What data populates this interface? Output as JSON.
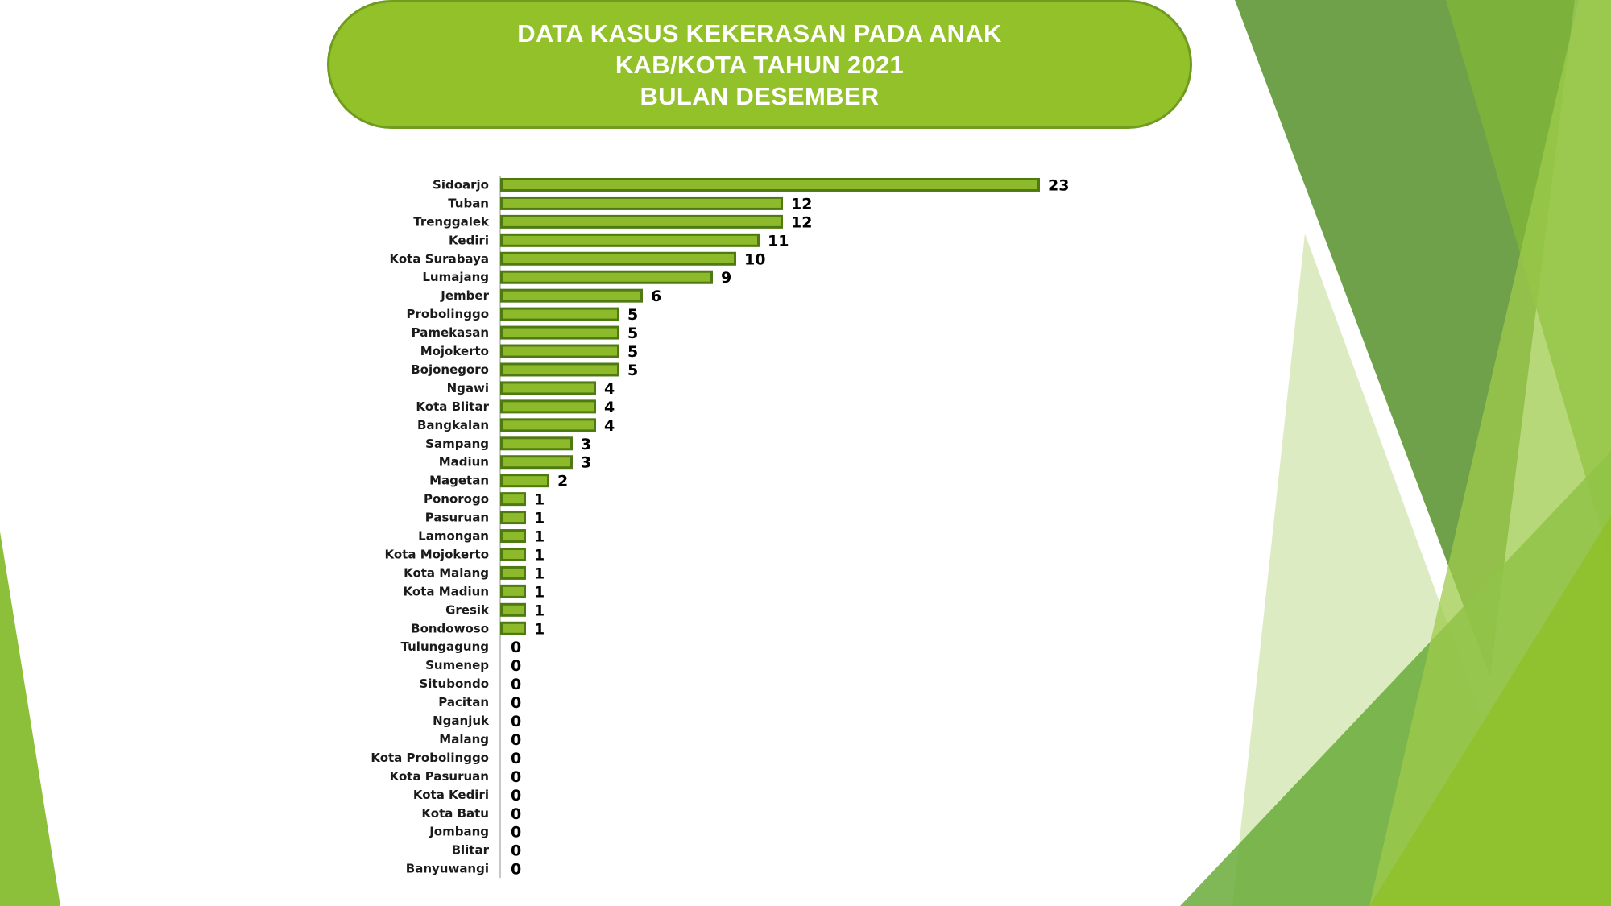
{
  "title": {
    "line1": "DATA KASUS KEKERASAN PADA ANAK",
    "line2": "KAB/KOTA TAHUN 2021",
    "line3": "BULAN DESEMBER"
  },
  "colors": {
    "title_fill": "#92c12a",
    "bar_fill": "#8dba2b",
    "bar_stroke": "#4f7a12"
  },
  "chart_data": {
    "type": "bar",
    "orientation": "horizontal",
    "categories": [
      "Sidoarjo",
      "Tuban",
      "Trenggalek",
      "Kediri",
      "Kota Surabaya",
      "Lumajang",
      "Jember",
      "Probolinggo",
      "Pamekasan",
      "Mojokerto",
      "Bojonegoro",
      "Ngawi",
      "Kota Blitar",
      "Bangkalan",
      "Sampang",
      "Madiun",
      "Magetan",
      "Ponorogo",
      "Pasuruan",
      "Lamongan",
      "Kota Mojokerto",
      "Kota Malang",
      "Kota Madiun",
      "Gresik",
      "Bondowoso",
      "Tulungagung",
      "Sumenep",
      "Situbondo",
      "Pacitan",
      "Nganjuk",
      "Malang",
      "Kota Probolinggo",
      "Kota Pasuruan",
      "Kota Kediri",
      "Kota Batu",
      "Jombang",
      "Blitar",
      "Banyuwangi"
    ],
    "values": [
      23,
      12,
      12,
      11,
      10,
      9,
      6,
      5,
      5,
      5,
      5,
      4,
      4,
      4,
      3,
      3,
      2,
      1,
      1,
      1,
      1,
      1,
      1,
      1,
      1,
      0,
      0,
      0,
      0,
      0,
      0,
      0,
      0,
      0,
      0,
      0,
      0,
      0
    ],
    "data_labels": true,
    "grid": false,
    "legend": "none"
  }
}
